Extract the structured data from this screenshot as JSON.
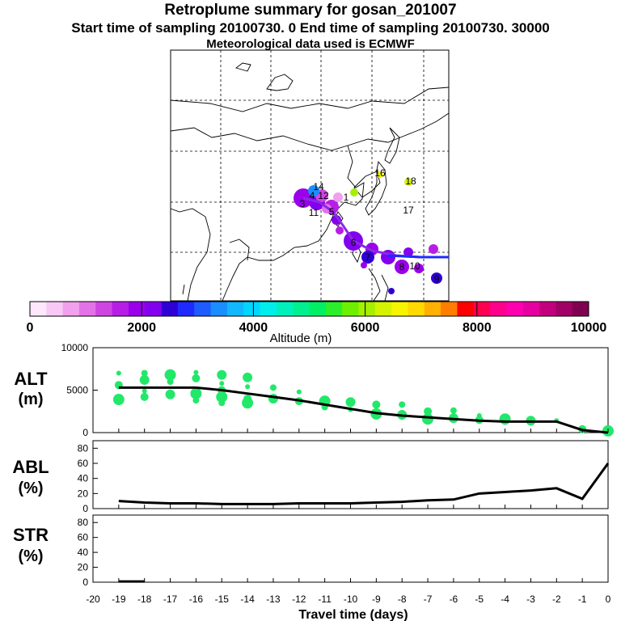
{
  "header": {
    "title": "Retroplume summary for gosan_201007",
    "subtitle": "Start time of sampling 20100730.    0    End time of sampling 20100730. 30000",
    "met_line": "Meteorological data used is ECMWF"
  },
  "map": {
    "trajectory_color": "#8a2be2",
    "trajectory_labels": [
      "1",
      "3",
      "4",
      "5",
      "6",
      "7",
      "8",
      "9",
      "10",
      "11",
      "12",
      "14",
      "16",
      "17",
      "18"
    ]
  },
  "colorbar": {
    "ticks": [
      "0",
      "2000",
      "4000",
      "6000",
      "8000",
      "10000"
    ],
    "title": "Altitude (m)",
    "colors": [
      "#fde7fb",
      "#f8c9f4",
      "#f0a0ec",
      "#e272e6",
      "#cf45e3",
      "#b71ee5",
      "#9b00ea",
      "#8300ee",
      "#2f00d6",
      "#1f2aff",
      "#1e5cff",
      "#1a8dff",
      "#11b7ff",
      "#00d6ff",
      "#00eeea",
      "#00f0bd",
      "#00f090",
      "#00ef64",
      "#2cef2c",
      "#6cf000",
      "#a5f000",
      "#d5f300",
      "#f7f400",
      "#ffd900",
      "#ffb000",
      "#ff7d00",
      "#ff0000",
      "#ff0050",
      "#ff008c",
      "#ff00b0",
      "#e6009f",
      "#c2007e",
      "#a10066",
      "#7f0050"
    ]
  },
  "panels": {
    "alt": {
      "label1": "ALT",
      "label2": "(m)",
      "ticks": [
        "0",
        "5000",
        "10000"
      ]
    },
    "abl": {
      "label1": "ABL",
      "label2": "(%)",
      "ticks": [
        "0",
        "20",
        "40",
        "60",
        "80"
      ]
    },
    "str": {
      "label1": "STR",
      "label2": "(%)",
      "ticks": [
        "0",
        "20",
        "40",
        "60",
        "80"
      ]
    }
  },
  "chart_data": [
    {
      "type": "line",
      "title": "ALT (m)",
      "ylabel": "ALT (m)",
      "xlim": [
        -20,
        0
      ],
      "ylim": [
        0,
        10000
      ],
      "x": [
        -19,
        -18,
        -17,
        -16,
        -15,
        -14,
        -13,
        -12,
        -11,
        -10,
        -9,
        -8,
        -7,
        -6,
        -5,
        -4,
        -3,
        -2,
        -1,
        0
      ],
      "series": [
        {
          "name": "mean altitude",
          "values": [
            5300,
            5300,
            5300,
            5300,
            5000,
            4600,
            4200,
            3800,
            3300,
            2800,
            2300,
            2000,
            1800,
            1600,
            1400,
            1300,
            1300,
            1300,
            300,
            0
          ]
        }
      ],
      "scatter": [
        {
          "x": -19,
          "y": 7000
        },
        {
          "x": -19,
          "y": 5600
        },
        {
          "x": -19,
          "y": 3900
        },
        {
          "x": -18,
          "y": 7000
        },
        {
          "x": -18,
          "y": 6200
        },
        {
          "x": -18,
          "y": 4900
        },
        {
          "x": -18,
          "y": 4200
        },
        {
          "x": -17,
          "y": 6800
        },
        {
          "x": -17,
          "y": 6000
        },
        {
          "x": -17,
          "y": 4500
        },
        {
          "x": -16,
          "y": 7100
        },
        {
          "x": -16,
          "y": 6400
        },
        {
          "x": -16,
          "y": 4600
        },
        {
          "x": -16,
          "y": 3800
        },
        {
          "x": -15,
          "y": 6800
        },
        {
          "x": -15,
          "y": 5800
        },
        {
          "x": -15,
          "y": 5000
        },
        {
          "x": -15,
          "y": 4200
        },
        {
          "x": -15,
          "y": 3500
        },
        {
          "x": -14,
          "y": 6500
        },
        {
          "x": -14,
          "y": 5400
        },
        {
          "x": -14,
          "y": 4000
        },
        {
          "x": -14,
          "y": 3500
        },
        {
          "x": -13,
          "y": 5300
        },
        {
          "x": -13,
          "y": 4000
        },
        {
          "x": -12,
          "y": 4800
        },
        {
          "x": -12,
          "y": 3700
        },
        {
          "x": -11,
          "y": 3700
        },
        {
          "x": -11,
          "y": 3000
        },
        {
          "x": -10,
          "y": 3600
        },
        {
          "x": -10,
          "y": 2700
        },
        {
          "x": -9,
          "y": 3300
        },
        {
          "x": -9,
          "y": 2200
        },
        {
          "x": -8,
          "y": 3300
        },
        {
          "x": -8,
          "y": 2100
        },
        {
          "x": -8,
          "y": 1800
        },
        {
          "x": -7,
          "y": 2500
        },
        {
          "x": -7,
          "y": 1600
        },
        {
          "x": -6,
          "y": 2600
        },
        {
          "x": -6,
          "y": 1700
        },
        {
          "x": -5,
          "y": 2000
        },
        {
          "x": -5,
          "y": 1500
        },
        {
          "x": -4,
          "y": 1600
        },
        {
          "x": -4,
          "y": 1300
        },
        {
          "x": -3,
          "y": 1400
        },
        {
          "x": -2,
          "y": 1400
        },
        {
          "x": -1,
          "y": 400
        },
        {
          "x": 0,
          "y": 200
        }
      ]
    },
    {
      "type": "line",
      "title": "ABL (%)",
      "ylabel": "ABL (%)",
      "xlim": [
        -20,
        0
      ],
      "ylim": [
        0,
        90
      ],
      "x": [
        -19,
        -18,
        -17,
        -16,
        -15,
        -14,
        -13,
        -12,
        -11,
        -10,
        -9,
        -8,
        -7,
        -6,
        -5,
        -4,
        -3,
        -2,
        -1,
        0
      ],
      "series": [
        {
          "name": "ABL fraction",
          "values": [
            10,
            8,
            7,
            7,
            6,
            6,
            6,
            7,
            7,
            7,
            8,
            9,
            11,
            12,
            20,
            22,
            24,
            27,
            13,
            60
          ]
        }
      ]
    },
    {
      "type": "line",
      "title": "STR (%)",
      "ylabel": "STR (%)",
      "xlabel": "Travel time (days)",
      "xlim": [
        -20,
        0
      ],
      "ylim": [
        0,
        90
      ],
      "x": [
        -19,
        -18
      ],
      "series": [
        {
          "name": "STR fraction",
          "values": [
            1,
            1
          ]
        }
      ],
      "xticks": [
        "-20",
        "-19",
        "-18",
        "-17",
        "-16",
        "-15",
        "-14",
        "-13",
        "-12",
        "-11",
        "-10",
        "-9",
        "-8",
        "-7",
        "-6",
        "-5",
        "-4",
        "-3",
        "-2",
        "-1",
        "0"
      ]
    }
  ]
}
